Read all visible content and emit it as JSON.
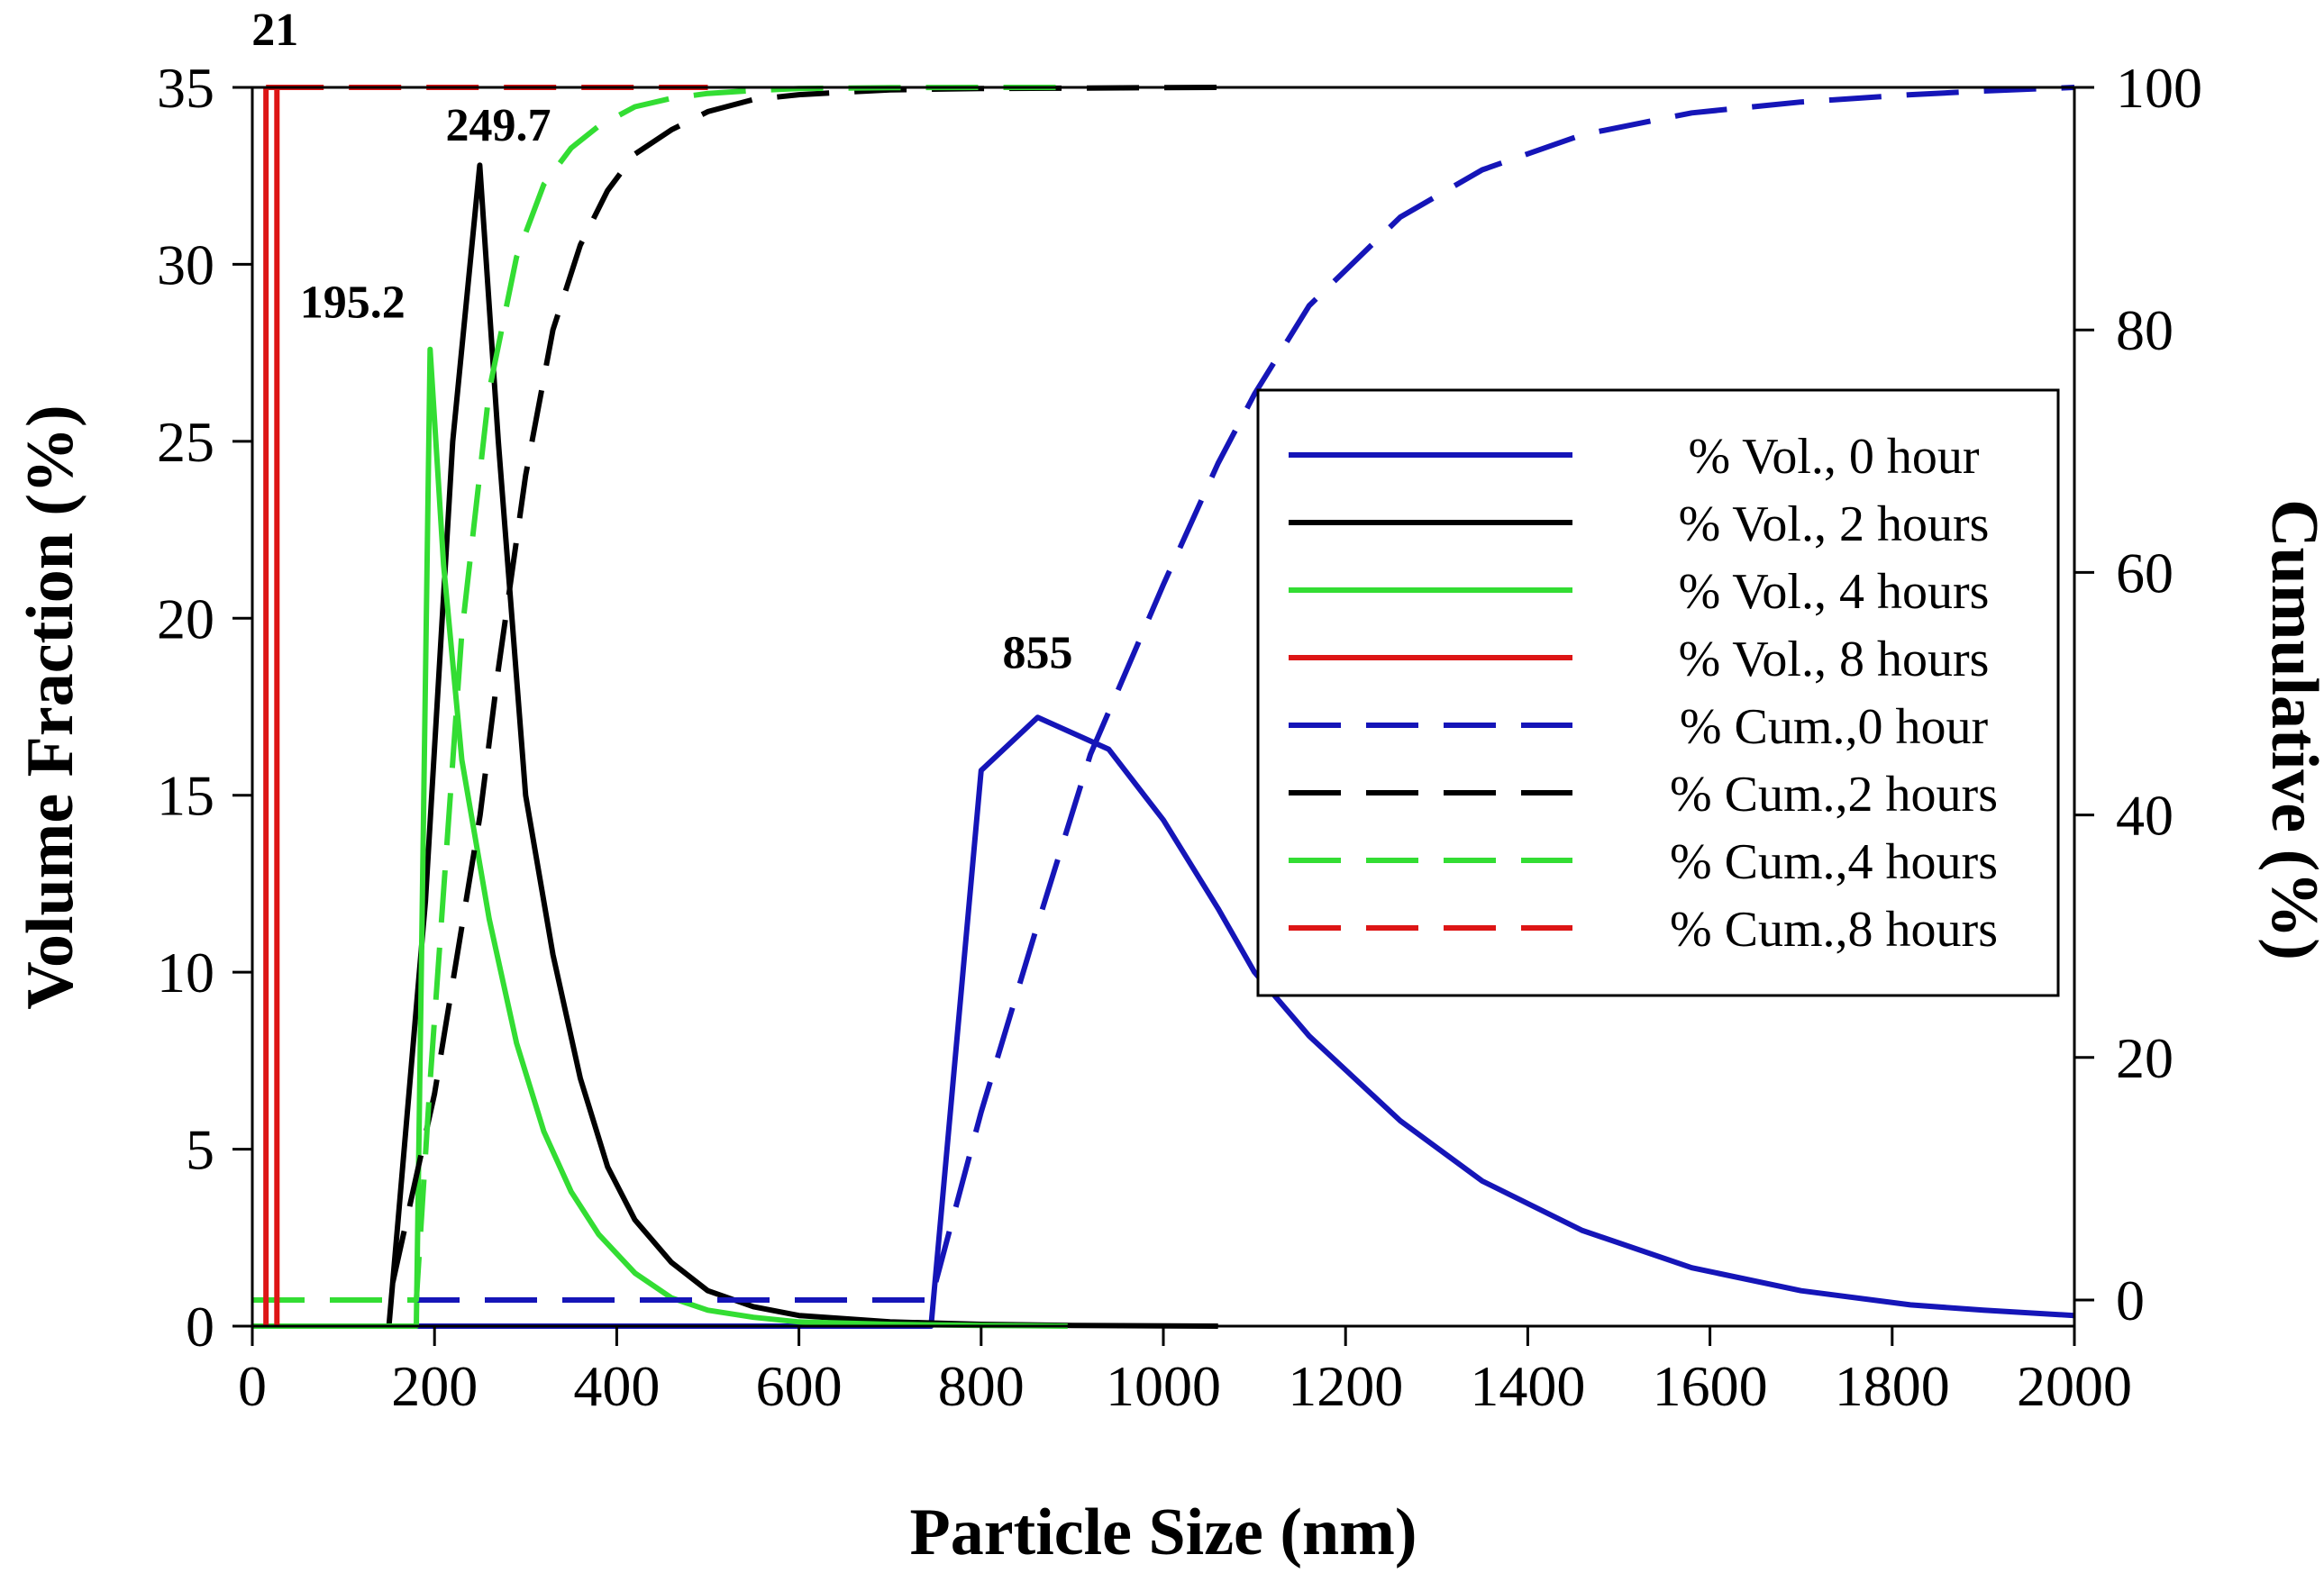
{
  "chart_data": {
    "type": "line",
    "xlabel": "Particle Size (nm)",
    "ylabel": "Volume Fraction (%)",
    "y2label": "Cumulative (%)",
    "xlim": [
      0,
      2000
    ],
    "ylim": [
      0,
      35
    ],
    "y2lim": [
      0,
      100
    ],
    "xticks": [
      "0",
      "200",
      "400",
      "600",
      "800",
      "1000",
      "1200",
      "1400",
      "1600",
      "1800",
      "2000"
    ],
    "yticks": [
      "0",
      "5",
      "10",
      "15",
      "20",
      "25",
      "30",
      "35"
    ],
    "y2ticks": [
      "0",
      "20",
      "40",
      "60",
      "80",
      "100"
    ],
    "legend_position": "center-right",
    "series": [
      {
        "name": "% Vol., 0 hour",
        "axis": "left",
        "style": "solid",
        "color": "#1515b8",
        "x": [
          0,
          745,
          800,
          862,
          940,
          1000,
          1060,
          1100,
          1160,
          1260,
          1350,
          1460,
          1580,
          1700,
          1820,
          1900,
          2000
        ],
        "y": [
          0,
          0,
          15.7,
          17.2,
          16.3,
          14.3,
          11.8,
          10.0,
          8.2,
          5.8,
          4.1,
          2.7,
          1.65,
          1.0,
          0.6,
          0.45,
          0.3
        ]
      },
      {
        "name": "% Vol., 2 hours",
        "axis": "left",
        "style": "solid",
        "color": "#000000",
        "x": [
          150,
          160,
          190,
          220,
          249.7,
          270,
          300,
          330,
          360,
          390,
          420,
          460,
          500,
          550,
          600,
          700,
          800,
          900,
          1060
        ],
        "y": [
          0,
          3,
          12,
          25,
          32.8,
          25,
          15,
          10.5,
          7,
          4.5,
          3,
          1.8,
          1.0,
          0.55,
          0.3,
          0.12,
          0.05,
          0.02,
          0
        ]
      },
      {
        "name": "% Vol., 4 hours",
        "axis": "left",
        "style": "solid",
        "color": "#33dd33",
        "x": [
          0,
          180,
          195.2,
          210,
          230,
          260,
          290,
          320,
          350,
          380,
          420,
          460,
          500,
          550,
          600,
          700,
          800,
          895
        ],
        "y": [
          0,
          0,
          27.6,
          21.5,
          16,
          11.5,
          8,
          5.5,
          3.8,
          2.6,
          1.5,
          0.8,
          0.45,
          0.25,
          0.12,
          0.05,
          0.02,
          0
        ]
      },
      {
        "name": "% Vol., 8 hours",
        "axis": "left",
        "style": "solid",
        "color": "#dd1515",
        "x": [
          15,
          21,
          27
        ],
        "y": [
          35,
          35,
          35
        ]
      },
      {
        "name": "% Cum.,0 hour",
        "axis": "right",
        "style": "dashed",
        "color": "#1515b8",
        "x": [
          0,
          745,
          800,
          860,
          920,
          1000,
          1060,
          1100,
          1160,
          1260,
          1350,
          1460,
          1580,
          1700,
          1820,
          1900,
          2000
        ],
        "y": [
          0,
          0,
          15.5,
          30.5,
          45,
          59,
          69,
          74.7,
          82,
          89.3,
          93.2,
          96.1,
          97.9,
          98.8,
          99.4,
          99.7,
          100
        ]
      },
      {
        "name": "% Cum.,2 hours",
        "axis": "right",
        "style": "dashed",
        "color": "#000000",
        "x": [
          0,
          150,
          200,
          250,
          270,
          300,
          330,
          360,
          390,
          420,
          460,
          500,
          550,
          600,
          700,
          800,
          1060
        ],
        "y": [
          0,
          0,
          17,
          40,
          52,
          68,
          80,
          87,
          91.5,
          94.5,
          96.5,
          98,
          99,
          99.4,
          99.8,
          99.9,
          100
        ]
      },
      {
        "name": "% Cum.,4 hours",
        "axis": "right",
        "style": "dashed",
        "color": "#33dd33",
        "x": [
          0,
          180,
          195.2,
          230,
          260,
          290,
          320,
          350,
          380,
          420,
          460,
          500,
          550,
          600,
          700,
          800,
          895
        ],
        "y": [
          0,
          0,
          18,
          55,
          75,
          86,
          92,
          95,
          96.8,
          98.4,
          99.1,
          99.5,
          99.75,
          99.9,
          99.98,
          100,
          100
        ]
      },
      {
        "name": "% Cum.,8 hours",
        "axis": "right",
        "style": "dashed",
        "color": "#dd1515",
        "x": [
          21,
          500
        ],
        "y": [
          100,
          100
        ]
      }
    ],
    "vlines": [
      {
        "x": 15,
        "color": "#dd1515"
      },
      {
        "x": 27,
        "color": "#dd1515"
      }
    ],
    "annotations": [
      {
        "text": "21",
        "x": 25,
        "y": 36.2
      },
      {
        "text": "249.7",
        "x": 270,
        "y": 33.5
      },
      {
        "text": "195.2",
        "x": 110,
        "y": 28.5
      },
      {
        "text": "855",
        "x": 862,
        "y": 18.6
      }
    ]
  }
}
